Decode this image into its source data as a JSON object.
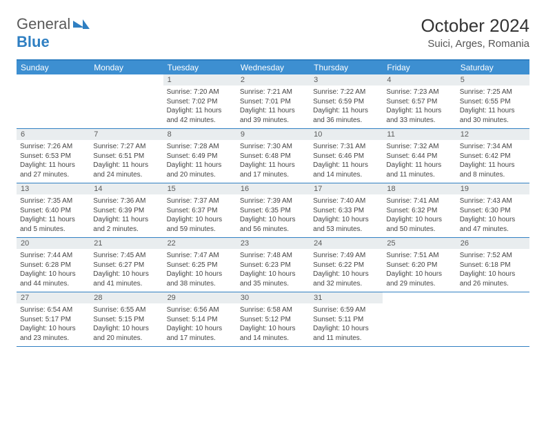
{
  "brand": {
    "part1": "General",
    "part2": "Blue"
  },
  "title": "October 2024",
  "location": "Suici, Arges, Romania",
  "weekdays": [
    "Sunday",
    "Monday",
    "Tuesday",
    "Wednesday",
    "Thursday",
    "Friday",
    "Saturday"
  ],
  "colors": {
    "accent": "#2f7fc2",
    "header_bg": "#3d8fd1",
    "daynum_bg": "#e9edef",
    "text": "#333333"
  },
  "weeks": [
    [
      null,
      null,
      {
        "n": "1",
        "sr": "7:20 AM",
        "ss": "7:02 PM",
        "dl": "11 hours and 42 minutes."
      },
      {
        "n": "2",
        "sr": "7:21 AM",
        "ss": "7:01 PM",
        "dl": "11 hours and 39 minutes."
      },
      {
        "n": "3",
        "sr": "7:22 AM",
        "ss": "6:59 PM",
        "dl": "11 hours and 36 minutes."
      },
      {
        "n": "4",
        "sr": "7:23 AM",
        "ss": "6:57 PM",
        "dl": "11 hours and 33 minutes."
      },
      {
        "n": "5",
        "sr": "7:25 AM",
        "ss": "6:55 PM",
        "dl": "11 hours and 30 minutes."
      }
    ],
    [
      {
        "n": "6",
        "sr": "7:26 AM",
        "ss": "6:53 PM",
        "dl": "11 hours and 27 minutes."
      },
      {
        "n": "7",
        "sr": "7:27 AM",
        "ss": "6:51 PM",
        "dl": "11 hours and 24 minutes."
      },
      {
        "n": "8",
        "sr": "7:28 AM",
        "ss": "6:49 PM",
        "dl": "11 hours and 20 minutes."
      },
      {
        "n": "9",
        "sr": "7:30 AM",
        "ss": "6:48 PM",
        "dl": "11 hours and 17 minutes."
      },
      {
        "n": "10",
        "sr": "7:31 AM",
        "ss": "6:46 PM",
        "dl": "11 hours and 14 minutes."
      },
      {
        "n": "11",
        "sr": "7:32 AM",
        "ss": "6:44 PM",
        "dl": "11 hours and 11 minutes."
      },
      {
        "n": "12",
        "sr": "7:34 AM",
        "ss": "6:42 PM",
        "dl": "11 hours and 8 minutes."
      }
    ],
    [
      {
        "n": "13",
        "sr": "7:35 AM",
        "ss": "6:40 PM",
        "dl": "11 hours and 5 minutes."
      },
      {
        "n": "14",
        "sr": "7:36 AM",
        "ss": "6:39 PM",
        "dl": "11 hours and 2 minutes."
      },
      {
        "n": "15",
        "sr": "7:37 AM",
        "ss": "6:37 PM",
        "dl": "10 hours and 59 minutes."
      },
      {
        "n": "16",
        "sr": "7:39 AM",
        "ss": "6:35 PM",
        "dl": "10 hours and 56 minutes."
      },
      {
        "n": "17",
        "sr": "7:40 AM",
        "ss": "6:33 PM",
        "dl": "10 hours and 53 minutes."
      },
      {
        "n": "18",
        "sr": "7:41 AM",
        "ss": "6:32 PM",
        "dl": "10 hours and 50 minutes."
      },
      {
        "n": "19",
        "sr": "7:43 AM",
        "ss": "6:30 PM",
        "dl": "10 hours and 47 minutes."
      }
    ],
    [
      {
        "n": "20",
        "sr": "7:44 AM",
        "ss": "6:28 PM",
        "dl": "10 hours and 44 minutes."
      },
      {
        "n": "21",
        "sr": "7:45 AM",
        "ss": "6:27 PM",
        "dl": "10 hours and 41 minutes."
      },
      {
        "n": "22",
        "sr": "7:47 AM",
        "ss": "6:25 PM",
        "dl": "10 hours and 38 minutes."
      },
      {
        "n": "23",
        "sr": "7:48 AM",
        "ss": "6:23 PM",
        "dl": "10 hours and 35 minutes."
      },
      {
        "n": "24",
        "sr": "7:49 AM",
        "ss": "6:22 PM",
        "dl": "10 hours and 32 minutes."
      },
      {
        "n": "25",
        "sr": "7:51 AM",
        "ss": "6:20 PM",
        "dl": "10 hours and 29 minutes."
      },
      {
        "n": "26",
        "sr": "7:52 AM",
        "ss": "6:18 PM",
        "dl": "10 hours and 26 minutes."
      }
    ],
    [
      {
        "n": "27",
        "sr": "6:54 AM",
        "ss": "5:17 PM",
        "dl": "10 hours and 23 minutes."
      },
      {
        "n": "28",
        "sr": "6:55 AM",
        "ss": "5:15 PM",
        "dl": "10 hours and 20 minutes."
      },
      {
        "n": "29",
        "sr": "6:56 AM",
        "ss": "5:14 PM",
        "dl": "10 hours and 17 minutes."
      },
      {
        "n": "30",
        "sr": "6:58 AM",
        "ss": "5:12 PM",
        "dl": "10 hours and 14 minutes."
      },
      {
        "n": "31",
        "sr": "6:59 AM",
        "ss": "5:11 PM",
        "dl": "10 hours and 11 minutes."
      },
      null,
      null
    ]
  ]
}
